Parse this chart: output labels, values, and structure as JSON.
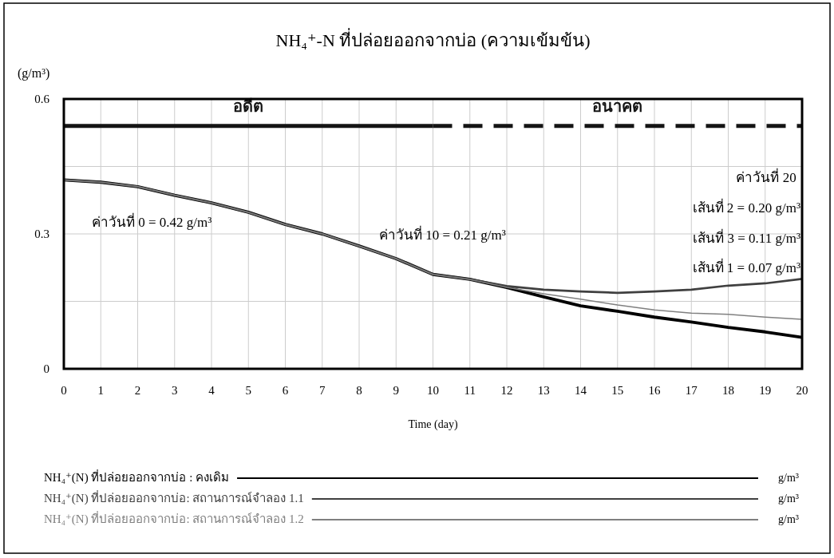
{
  "chart_data": {
    "type": "line",
    "title": "NH₄⁺-N ที่ปล่อยออกจากบ่อ (ความเข้มข้น)",
    "xlabel": "Time (day)",
    "ylabel": "(g/m³)",
    "x": [
      0,
      1,
      2,
      3,
      4,
      5,
      6,
      7,
      8,
      9,
      10,
      11,
      12,
      13,
      14,
      15,
      16,
      17,
      18,
      19,
      20
    ],
    "series": [
      {
        "name": "อดีต",
        "color": "#141414",
        "x": [
          0,
          10
        ],
        "values": [
          0.54,
          0.54
        ],
        "line_style": "solid"
      },
      {
        "name": "อนาคต",
        "color": "#141414",
        "x": [
          10,
          20
        ],
        "values": [
          0.54,
          0.54
        ],
        "line_style": "dashed"
      },
      {
        "name": "NH₄⁺(N) ที่ปล่อยออกจากบ่อ : คงเดิม",
        "color": "#000000",
        "values": [
          0.42,
          0.415,
          0.405,
          0.386,
          0.369,
          0.348,
          0.321,
          0.3,
          0.273,
          0.245,
          0.21,
          0.199,
          0.181,
          0.16,
          0.14,
          0.128,
          0.115,
          0.104,
          0.092,
          0.082,
          0.07
        ]
      },
      {
        "name": "NH₄⁺(N) ที่ปล่อยออกจากบ่อ: สถานการณ์จำลอง 1.1",
        "color": "#404040",
        "values": [
          0.42,
          0.415,
          0.405,
          0.386,
          0.369,
          0.348,
          0.321,
          0.3,
          0.273,
          0.245,
          0.21,
          0.199,
          0.184,
          0.176,
          0.172,
          0.169,
          0.172,
          0.176,
          0.185,
          0.19,
          0.2
        ]
      },
      {
        "name": "NH₄⁺(N) ที่ปล่อยออกจากบ่อ: สถานการณ์จำลอง 1.2",
        "color": "#808080",
        "values": [
          0.42,
          0.415,
          0.405,
          0.386,
          0.369,
          0.348,
          0.321,
          0.3,
          0.273,
          0.245,
          0.21,
          0.199,
          0.181,
          0.167,
          0.155,
          0.142,
          0.131,
          0.124,
          0.121,
          0.115,
          0.11
        ]
      }
    ],
    "xlim": [
      0,
      20
    ],
    "xticks": [
      0,
      1,
      2,
      3,
      4,
      5,
      6,
      7,
      8,
      9,
      10,
      11,
      12,
      13,
      14,
      15,
      16,
      17,
      18,
      19,
      20
    ],
    "ylim": [
      0,
      0.6
    ],
    "yticks": [
      0,
      {
        "value": 0.15,
        "label": null
      },
      0.3,
      {
        "value": 0.45,
        "label": null
      },
      0.6
    ],
    "grid": true,
    "legend": "bottom",
    "line_style": "solid",
    "annotations": [
      "ค่าวันที่ 0 = 0.42 g/m³",
      "ค่าวันที่ 10 = 0.21 g/m³",
      "ค่าวันที่ 20",
      "เส้นที่ 2 = 0.20 g/m³",
      "เส้นที่ 3 = 0.11 g/m³",
      "เส้นที่ 1 = 0.07 g/m³",
      "g/m³",
      "g/m³",
      "g/m³"
    ]
  }
}
